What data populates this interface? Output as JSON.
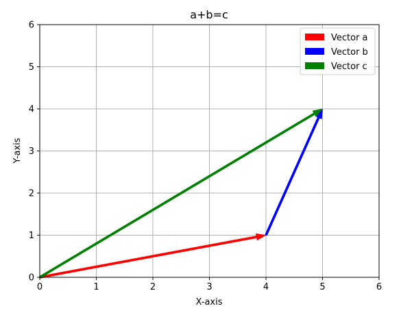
{
  "chart_data": {
    "type": "vector",
    "title": "a+b=c",
    "xlabel": "X-axis",
    "ylabel": "Y-axis",
    "xlim": [
      0,
      6
    ],
    "ylim": [
      0,
      6
    ],
    "xticks": [
      "0",
      "1",
      "2",
      "3",
      "4",
      "5",
      "6"
    ],
    "yticks": [
      "0",
      "1",
      "2",
      "3",
      "4",
      "5",
      "6"
    ],
    "grid": true,
    "legend_position": "top-right",
    "series": [
      {
        "name": "Vector a",
        "color": "#ff0000",
        "start": [
          0,
          0
        ],
        "end": [
          4,
          1
        ]
      },
      {
        "name": "Vector b",
        "color": "#0000ff",
        "start": [
          4,
          1
        ],
        "end": [
          5,
          4
        ]
      },
      {
        "name": "Vector c",
        "color": "#008000",
        "start": [
          0,
          0
        ],
        "end": [
          5,
          4
        ]
      }
    ]
  }
}
